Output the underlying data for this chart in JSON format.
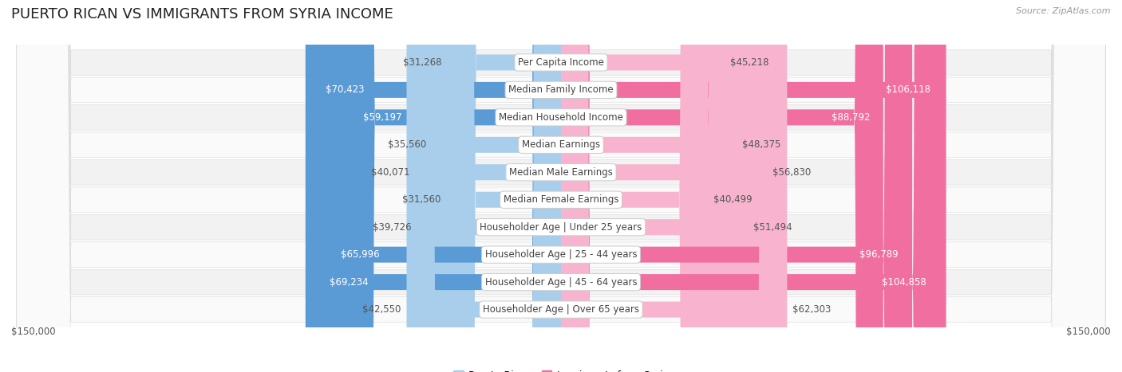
{
  "title": "Puerto Rican vs Immigrants from Syria Income",
  "source": "Source: ZipAtlas.com",
  "categories": [
    "Per Capita Income",
    "Median Family Income",
    "Median Household Income",
    "Median Earnings",
    "Median Male Earnings",
    "Median Female Earnings",
    "Householder Age | Under 25 years",
    "Householder Age | 25 - 44 years",
    "Householder Age | 45 - 64 years",
    "Householder Age | Over 65 years"
  ],
  "puerto_rican": [
    31268,
    70423,
    59197,
    35560,
    40071,
    31560,
    39726,
    65996,
    69234,
    42550
  ],
  "syria": [
    45218,
    106118,
    88792,
    48375,
    56830,
    40499,
    51494,
    96789,
    104858,
    62303
  ],
  "puerto_rican_labels": [
    "$31,268",
    "$70,423",
    "$59,197",
    "$35,560",
    "$40,071",
    "$31,560",
    "$39,726",
    "$65,996",
    "$69,234",
    "$42,550"
  ],
  "syria_labels": [
    "$45,218",
    "$106,118",
    "$88,792",
    "$48,375",
    "$56,830",
    "$40,499",
    "$51,494",
    "$96,789",
    "$104,858",
    "$62,303"
  ],
  "max_val": 150000,
  "color_pr_light": "#A8CEEC",
  "color_pr_dark": "#5B9BD5",
  "color_syria_light": "#F8B4CE",
  "color_syria_dark": "#F06FA0",
  "pr_dark_threshold": 55000,
  "syria_dark_threshold": 70000,
  "row_bg_even": "#F2F2F2",
  "row_bg_odd": "#FAFAFA",
  "x_label_left": "$150,000",
  "x_label_right": "$150,000",
  "legend_pr": "Puerto Rican",
  "legend_syria": "Immigrants from Syria",
  "title_fontsize": 13,
  "label_fontsize": 8.5,
  "value_fontsize": 8.5,
  "axis_label_fontsize": 8.5
}
